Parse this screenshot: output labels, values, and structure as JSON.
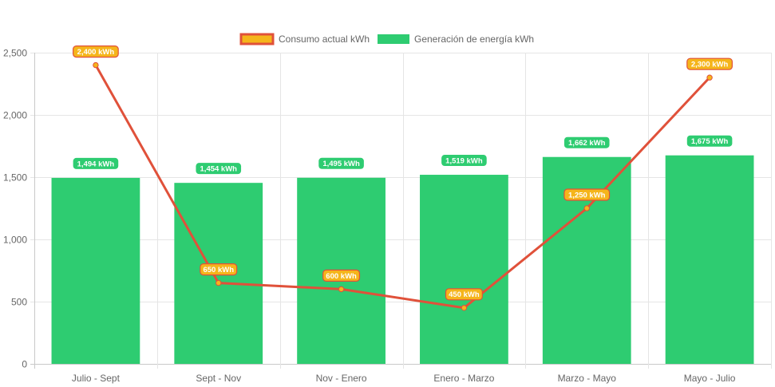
{
  "chart_data": {
    "type": "bar",
    "categories": [
      "Julio - Sept",
      "Sept - Nov",
      "Nov - Enero",
      "Enero - Marzo",
      "Marzo - Mayo",
      "Mayo - Julio"
    ],
    "series": [
      {
        "name": "Consumo actual kWh",
        "type": "line",
        "values": [
          2400,
          650,
          600,
          450,
          1250,
          2300
        ],
        "labels": [
          "2,400 kWh",
          "650 kWh",
          "600 kWh",
          "450 kWh",
          "1,250 kWh",
          "2,300 kWh"
        ],
        "line_color": "#e0513a",
        "point_color": "#f5b51b",
        "label_bg": "#f5b51b",
        "label_border": "#e0513a"
      },
      {
        "name": "Generación de energía kWh",
        "type": "bar",
        "values": [
          1494,
          1454,
          1495,
          1519,
          1662,
          1675
        ],
        "labels": [
          "1,494 kWh",
          "1,454 kWh",
          "1,495 kWh",
          "1,519 kWh",
          "1,662 kWh",
          "1,675 kWh"
        ],
        "color": "#2ecc71"
      }
    ],
    "ylim": [
      0,
      2500
    ],
    "yticks": [
      0,
      500,
      1000,
      1500,
      2000,
      2500
    ],
    "ytick_labels": [
      "0",
      "500",
      "1,000",
      "1,500",
      "2,000",
      "2,500"
    ],
    "title": "",
    "xlabel": "",
    "ylabel": "",
    "grid": true,
    "legend_position": "top-center"
  }
}
